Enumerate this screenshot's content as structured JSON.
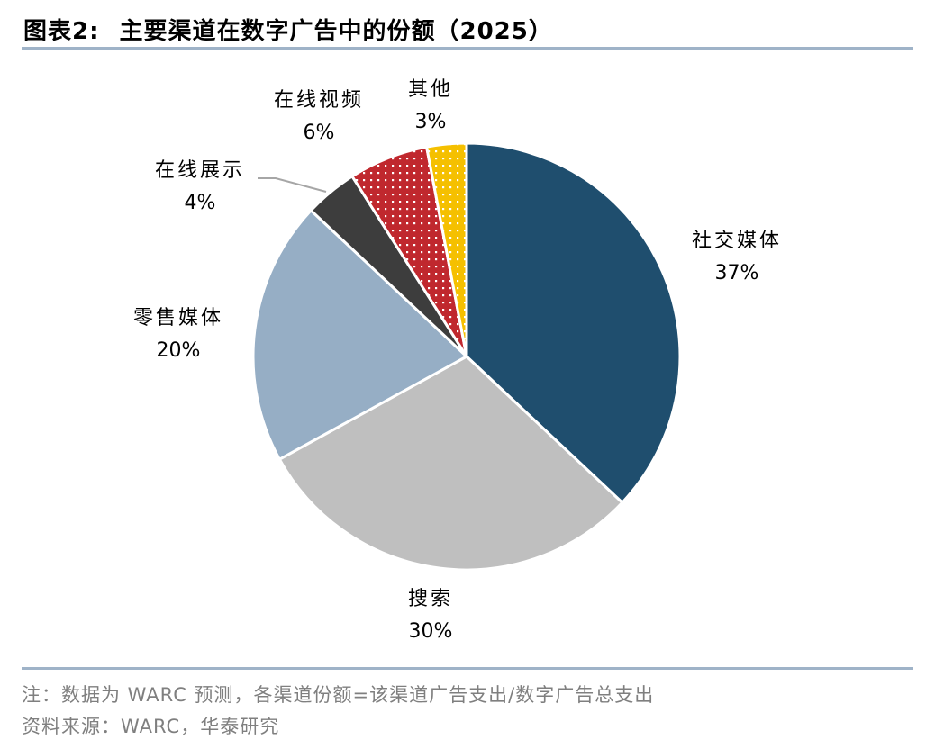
{
  "header": {
    "figure_label": "图表2:",
    "title": "主要渠道在数字广告中的份额（2025）"
  },
  "footer": {
    "note": "注：数据为 WARC 预测，各渠道份额=该渠道广告支出/数字广告总支出",
    "source": "资料来源：WARC，华泰研究"
  },
  "chart_data": {
    "type": "pie",
    "slices": [
      {
        "label": "社交媒体",
        "value_text": "37%",
        "value": 37,
        "color": "#1f4e6e",
        "pattern": "none"
      },
      {
        "label": "搜索",
        "value_text": "30%",
        "value": 30,
        "color": "#bfbfbf",
        "pattern": "none"
      },
      {
        "label": "零售媒体",
        "value_text": "20%",
        "value": 20,
        "color": "#96aec5",
        "pattern": "none"
      },
      {
        "label": "在线展示",
        "value_text": "4%",
        "value": 4,
        "color": "#3d3d3d",
        "pattern": "none"
      },
      {
        "label": "在线视频",
        "value_text": "6%",
        "value": 6,
        "color": "#c0282e",
        "pattern": "white-dots"
      },
      {
        "label": "其他",
        "value_text": "3%",
        "value": 3,
        "color": "#f5c000",
        "pattern": "white-dots"
      }
    ],
    "start_angle": "12 o'clock",
    "direction": "clockwise",
    "legend": "none"
  }
}
